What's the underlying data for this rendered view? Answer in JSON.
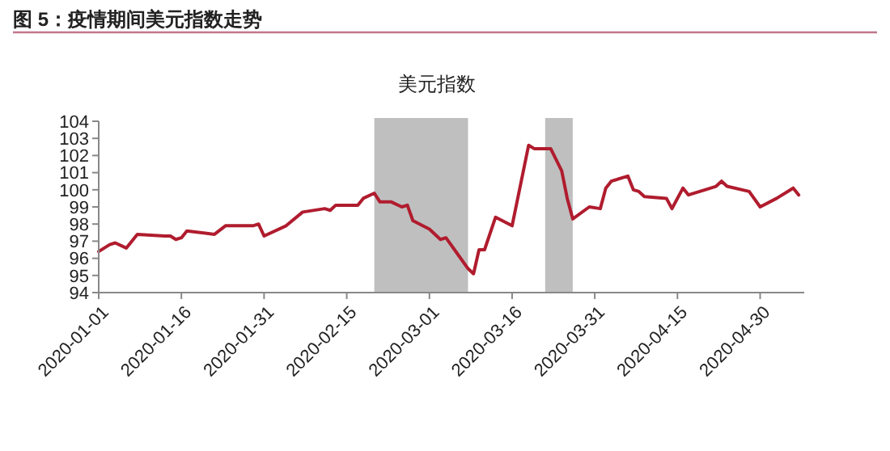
{
  "chart_data": {
    "type": "line",
    "title": "图 5：疫情期间美元指数走势",
    "subtitle": "美元指数",
    "x": [
      "2020-01-01",
      "2020-01-03",
      "2020-01-04",
      "2020-01-06",
      "2020-01-08",
      "2020-01-13",
      "2020-01-14",
      "2020-01-15",
      "2020-01-16",
      "2020-01-17",
      "2020-01-22",
      "2020-01-24",
      "2020-01-29",
      "2020-01-30",
      "2020-01-31",
      "2020-02-04",
      "2020-02-07",
      "2020-02-11",
      "2020-02-12",
      "2020-02-13",
      "2020-02-17",
      "2020-02-18",
      "2020-02-20",
      "2020-02-21",
      "2020-02-23",
      "2020-02-25",
      "2020-02-26",
      "2020-02-27",
      "2020-03-01",
      "2020-03-03",
      "2020-03-04",
      "2020-03-06",
      "2020-03-08",
      "2020-03-09",
      "2020-03-10",
      "2020-03-11",
      "2020-03-13",
      "2020-03-16",
      "2020-03-19",
      "2020-03-20",
      "2020-03-23",
      "2020-03-25",
      "2020-03-26",
      "2020-03-27",
      "2020-03-30",
      "2020-04-01",
      "2020-04-02",
      "2020-04-03",
      "2020-04-06",
      "2020-04-07",
      "2020-04-08",
      "2020-04-09",
      "2020-04-13",
      "2020-04-14",
      "2020-04-16",
      "2020-04-17",
      "2020-04-20",
      "2020-04-22",
      "2020-04-23",
      "2020-04-24",
      "2020-04-28",
      "2020-04-30",
      "2020-05-03",
      "2020-05-06",
      "2020-05-07"
    ],
    "series": [
      {
        "color": "#b01c2e",
        "values": [
          96.4,
          96.8,
          96.9,
          96.6,
          97.4,
          97.3,
          97.3,
          97.1,
          97.2,
          97.6,
          97.4,
          97.9,
          97.9,
          98.0,
          97.3,
          97.9,
          98.7,
          98.9,
          98.8,
          99.1,
          99.1,
          99.5,
          99.8,
          99.3,
          99.3,
          99.0,
          99.1,
          98.2,
          97.7,
          97.1,
          97.2,
          96.3,
          95.4,
          95.1,
          96.5,
          96.5,
          98.4,
          97.9,
          102.6,
          102.4,
          102.4,
          101.1,
          99.5,
          98.3,
          99.0,
          98.9,
          100.1,
          100.5,
          100.8,
          100.0,
          99.9,
          99.6,
          99.5,
          98.9,
          100.1,
          99.7,
          100.0,
          100.2,
          100.5,
          100.2,
          99.9,
          99.0,
          99.5,
          100.1,
          99.7
        ]
      }
    ],
    "xlim": [
      "2020-01-01",
      "2020-05-08"
    ],
    "xticks": [
      "2020-01-01",
      "2020-01-16",
      "2020-01-31",
      "2020-02-15",
      "2020-03-01",
      "2020-03-16",
      "2020-03-31",
      "2020-04-15",
      "2020-04-30"
    ],
    "ylim": [
      94,
      104
    ],
    "yticks": [
      94,
      95,
      96,
      97,
      98,
      99,
      100,
      101,
      102,
      103,
      104
    ],
    "bands": [
      {
        "axis": "x",
        "from": "2020-02-20",
        "to": "2020-03-08",
        "color": "#bfbfbf"
      },
      {
        "axis": "x",
        "from": "2020-03-22",
        "to": "2020-03-27",
        "color": "#bfbfbf"
      }
    ],
    "grid": false,
    "marker": "none",
    "line_style": "solid"
  }
}
